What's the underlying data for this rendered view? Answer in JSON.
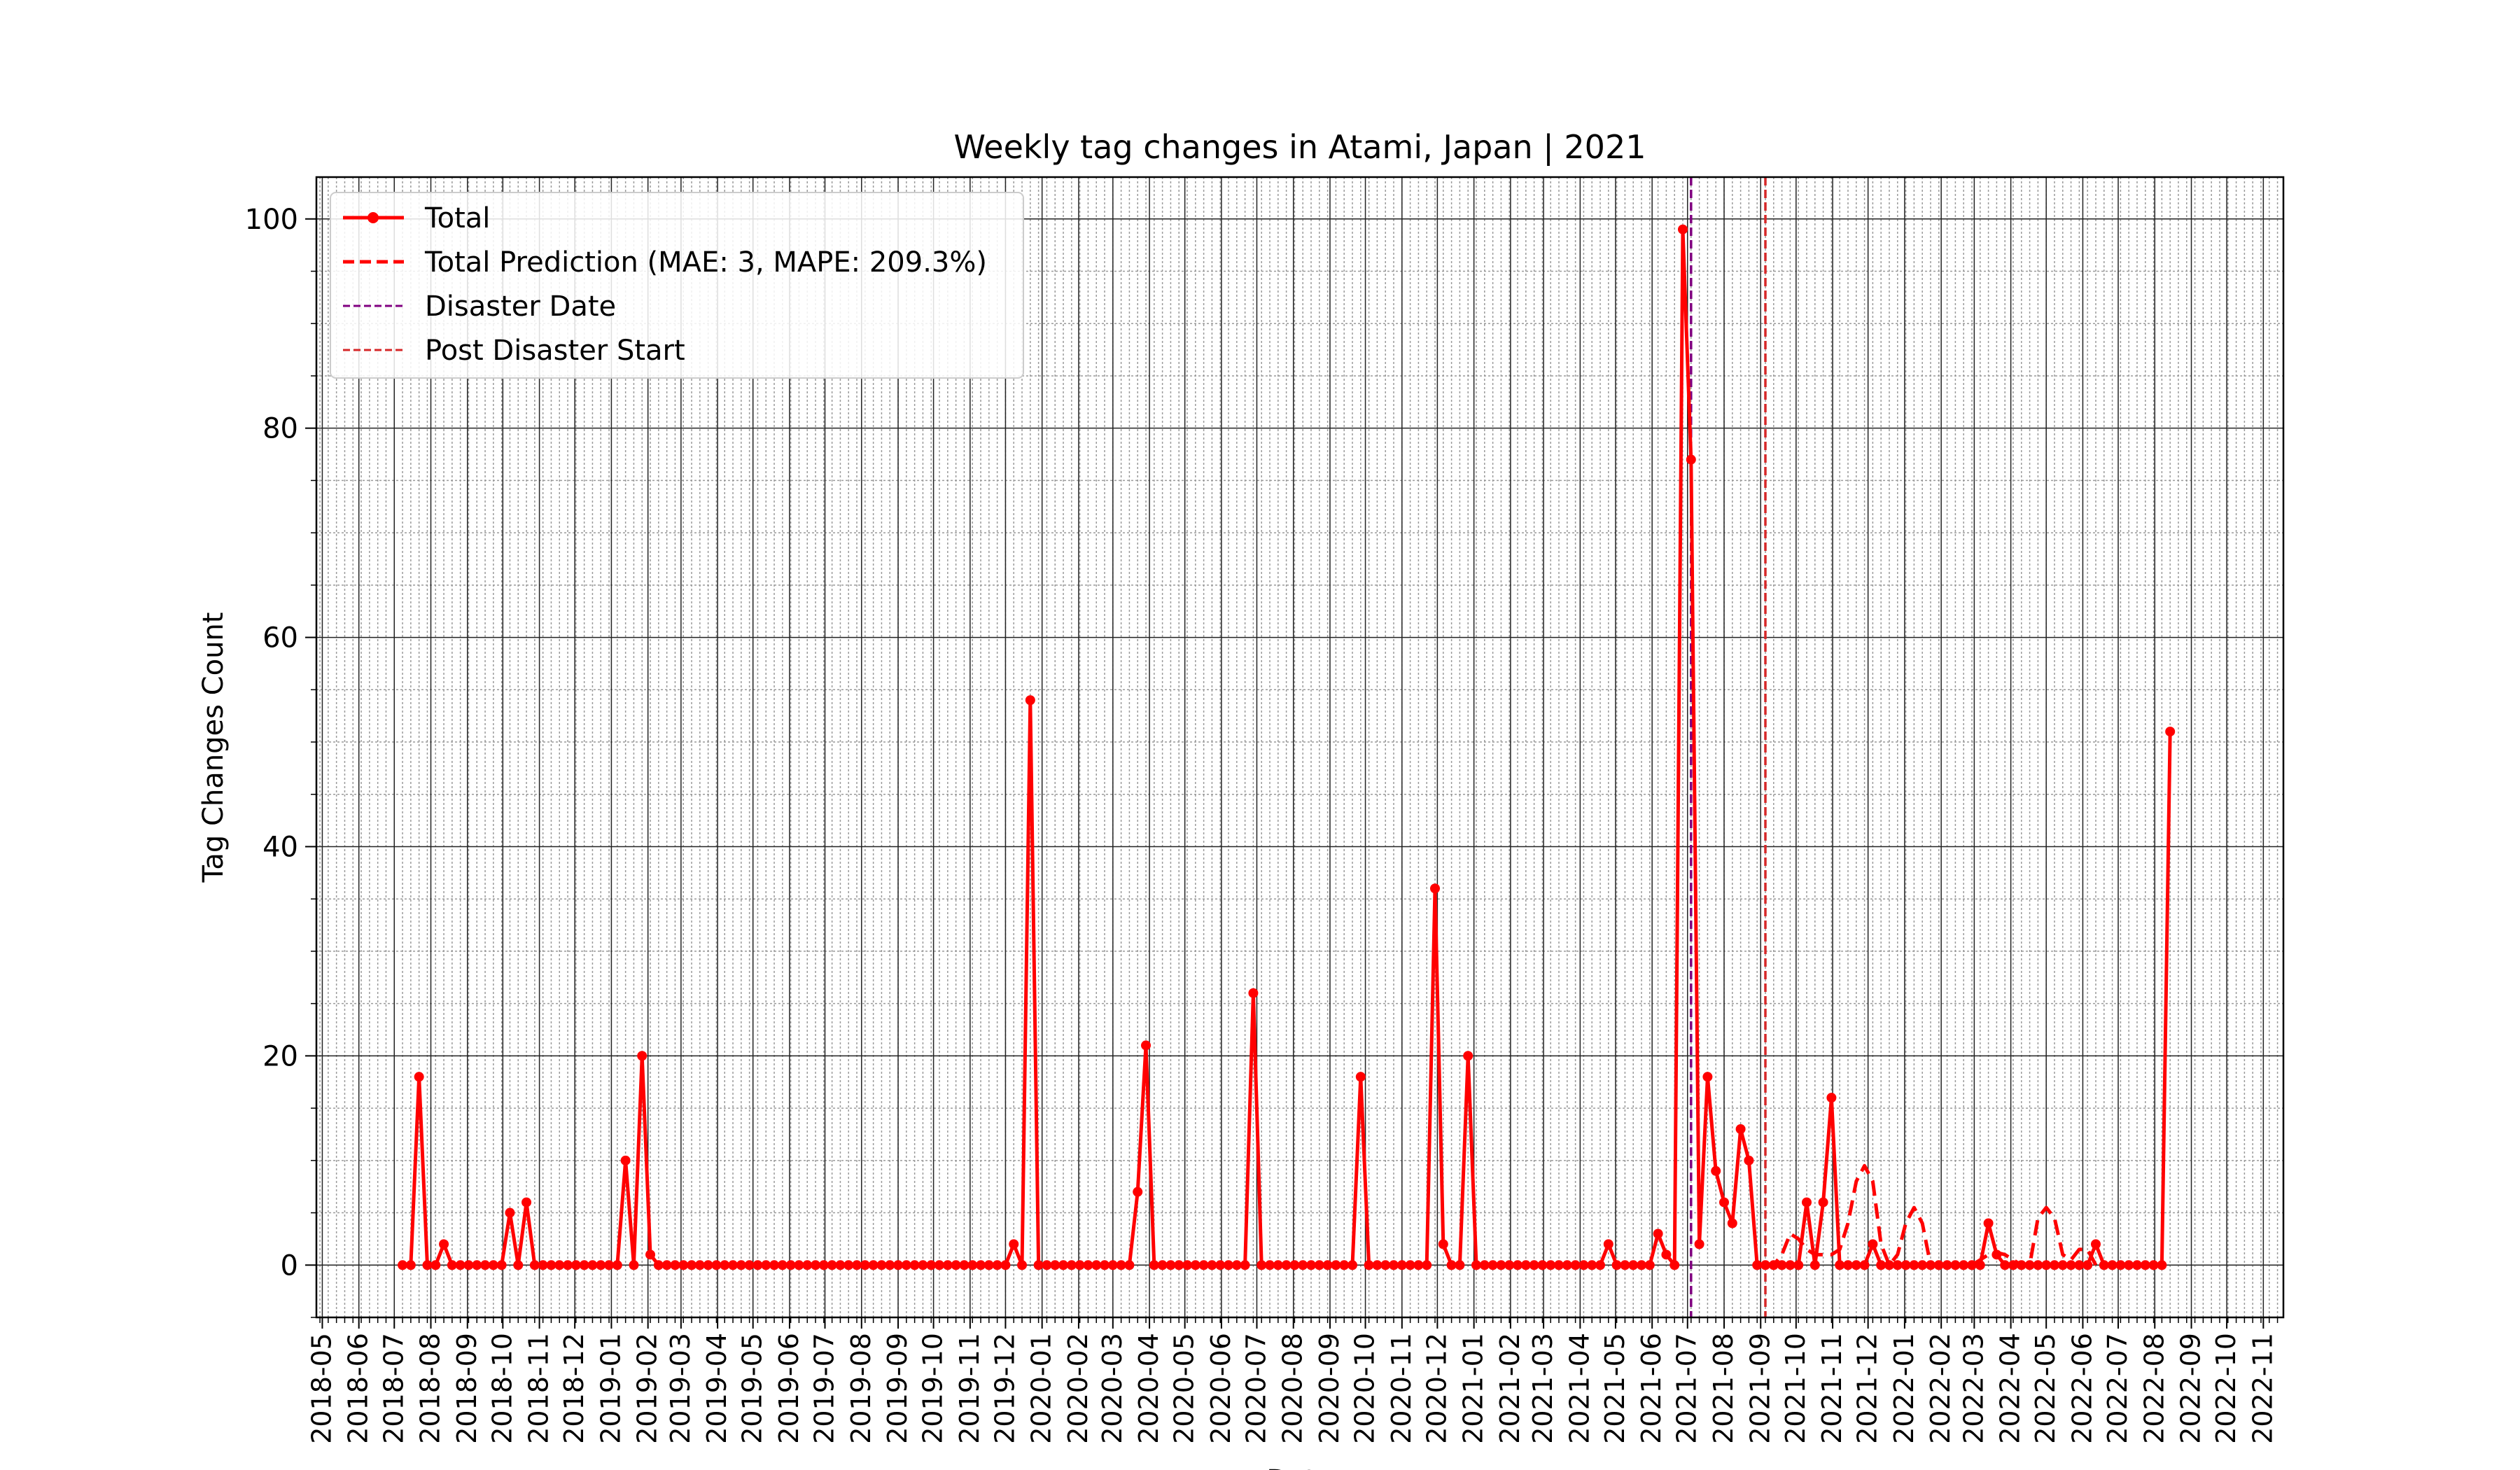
{
  "chart_data": {
    "type": "line",
    "title": "Weekly tag changes in Atami, Japan | 2021",
    "xlabel": "Date",
    "ylabel": "Tag Changes Count",
    "xlim": [
      "2018-04-26",
      "2022-11-18"
    ],
    "ylim": [
      -5,
      104
    ],
    "grid": true,
    "legend_position": "top-left",
    "x_tick_labels": [
      "2018-05",
      "2018-06",
      "2018-07",
      "2018-08",
      "2018-09",
      "2018-10",
      "2018-11",
      "2018-12",
      "2019-01",
      "2019-02",
      "2019-03",
      "2019-04",
      "2019-05",
      "2019-06",
      "2019-07",
      "2019-08",
      "2019-09",
      "2019-10",
      "2019-11",
      "2019-12",
      "2020-01",
      "2020-02",
      "2020-03",
      "2020-04",
      "2020-05",
      "2020-06",
      "2020-07",
      "2020-08",
      "2020-09",
      "2020-10",
      "2020-11",
      "2020-12",
      "2021-01",
      "2021-02",
      "2021-03",
      "2021-04",
      "2021-05",
      "2021-06",
      "2021-07",
      "2021-08",
      "2021-09",
      "2021-10",
      "2021-11",
      "2021-12",
      "2022-01",
      "2022-02",
      "2022-03",
      "2022-04",
      "2022-05",
      "2022-06",
      "2022-07",
      "2022-08",
      "2022-09",
      "2022-10",
      "2022-11"
    ],
    "y_ticks": [
      0,
      20,
      40,
      60,
      80,
      100
    ],
    "x_minor_tick_days": 7,
    "y_minor_tick_step": 5,
    "colors": {
      "total": "#ff0000",
      "prediction": "#ff0000",
      "disaster": "#800080",
      "post_disaster": "#d62728",
      "grid_major": "#222222",
      "grid_minor": "#9a9a9a"
    },
    "legend": [
      {
        "label": "Total",
        "style": "solid-marker"
      },
      {
        "label": "Total Prediction (MAE: 3, MAPE: 209.3%)",
        "style": "dashed"
      },
      {
        "label": "Disaster Date",
        "style": "dashed-thin-purple"
      },
      {
        "label": "Post Disaster Start",
        "style": "dashed-thin-brown"
      }
    ],
    "disaster_date": "2021-07-04",
    "post_disaster_start": "2021-09-05",
    "series": [
      {
        "name": "Total",
        "start_date": "2018-07-08",
        "interval_days": 7,
        "values": [
          0,
          0,
          18,
          0,
          0,
          2,
          0,
          0,
          0,
          0,
          0,
          0,
          0,
          5,
          0,
          6,
          0,
          0,
          0,
          0,
          0,
          0,
          0,
          0,
          0,
          0,
          0,
          10,
          0,
          20,
          1,
          0,
          0,
          0,
          0,
          0,
          0,
          0,
          0,
          0,
          0,
          0,
          0,
          0,
          0,
          0,
          0,
          0,
          0,
          0,
          0,
          0,
          0,
          0,
          0,
          0,
          0,
          0,
          0,
          0,
          0,
          0,
          0,
          0,
          0,
          0,
          0,
          0,
          0,
          0,
          0,
          0,
          0,
          0,
          2,
          0,
          54,
          0,
          0,
          0,
          0,
          0,
          0,
          0,
          0,
          0,
          0,
          0,
          0,
          7,
          21,
          0,
          0,
          0,
          0,
          0,
          0,
          0,
          0,
          0,
          0,
          0,
          0,
          26,
          0,
          0,
          0,
          0,
          0,
          0,
          0,
          0,
          0,
          0,
          0,
          0,
          18,
          0,
          0,
          0,
          0,
          0,
          0,
          0,
          0,
          36,
          2,
          0,
          0,
          20,
          0,
          0,
          0,
          0,
          0,
          0,
          0,
          0,
          0,
          0,
          0,
          0,
          0,
          0,
          0,
          0,
          2,
          0,
          0,
          0,
          0,
          0,
          3,
          1,
          0,
          99,
          77,
          2,
          18,
          9,
          6,
          4,
          13,
          10,
          0,
          0,
          0,
          0,
          0,
          0,
          6,
          0,
          6,
          16,
          0,
          0,
          0,
          0,
          2,
          0,
          0,
          0,
          0,
          0,
          0,
          0,
          0,
          0,
          0,
          0,
          0,
          0,
          4,
          1,
          0,
          0,
          0,
          0,
          0,
          0,
          0,
          0,
          0,
          0,
          0,
          2,
          0,
          0,
          0,
          0,
          0,
          0,
          0,
          0,
          51
        ]
      },
      {
        "name": "Total Prediction (MAE: 3, MAPE: 209.3%)",
        "start_date": "2021-09-05",
        "interval_days": 7,
        "values": [
          0,
          0,
          1,
          3,
          2.5,
          1.5,
          1,
          1,
          1,
          1.5,
          4,
          8,
          9.5,
          8,
          2,
          0,
          1,
          4,
          5.5,
          4,
          0,
          0,
          0,
          0,
          0,
          0,
          0.5,
          1,
          1.2,
          1,
          0.5,
          0,
          0,
          4.5,
          5.5,
          4.5,
          1,
          0.5,
          1.5,
          1.5,
          0
        ]
      }
    ]
  }
}
